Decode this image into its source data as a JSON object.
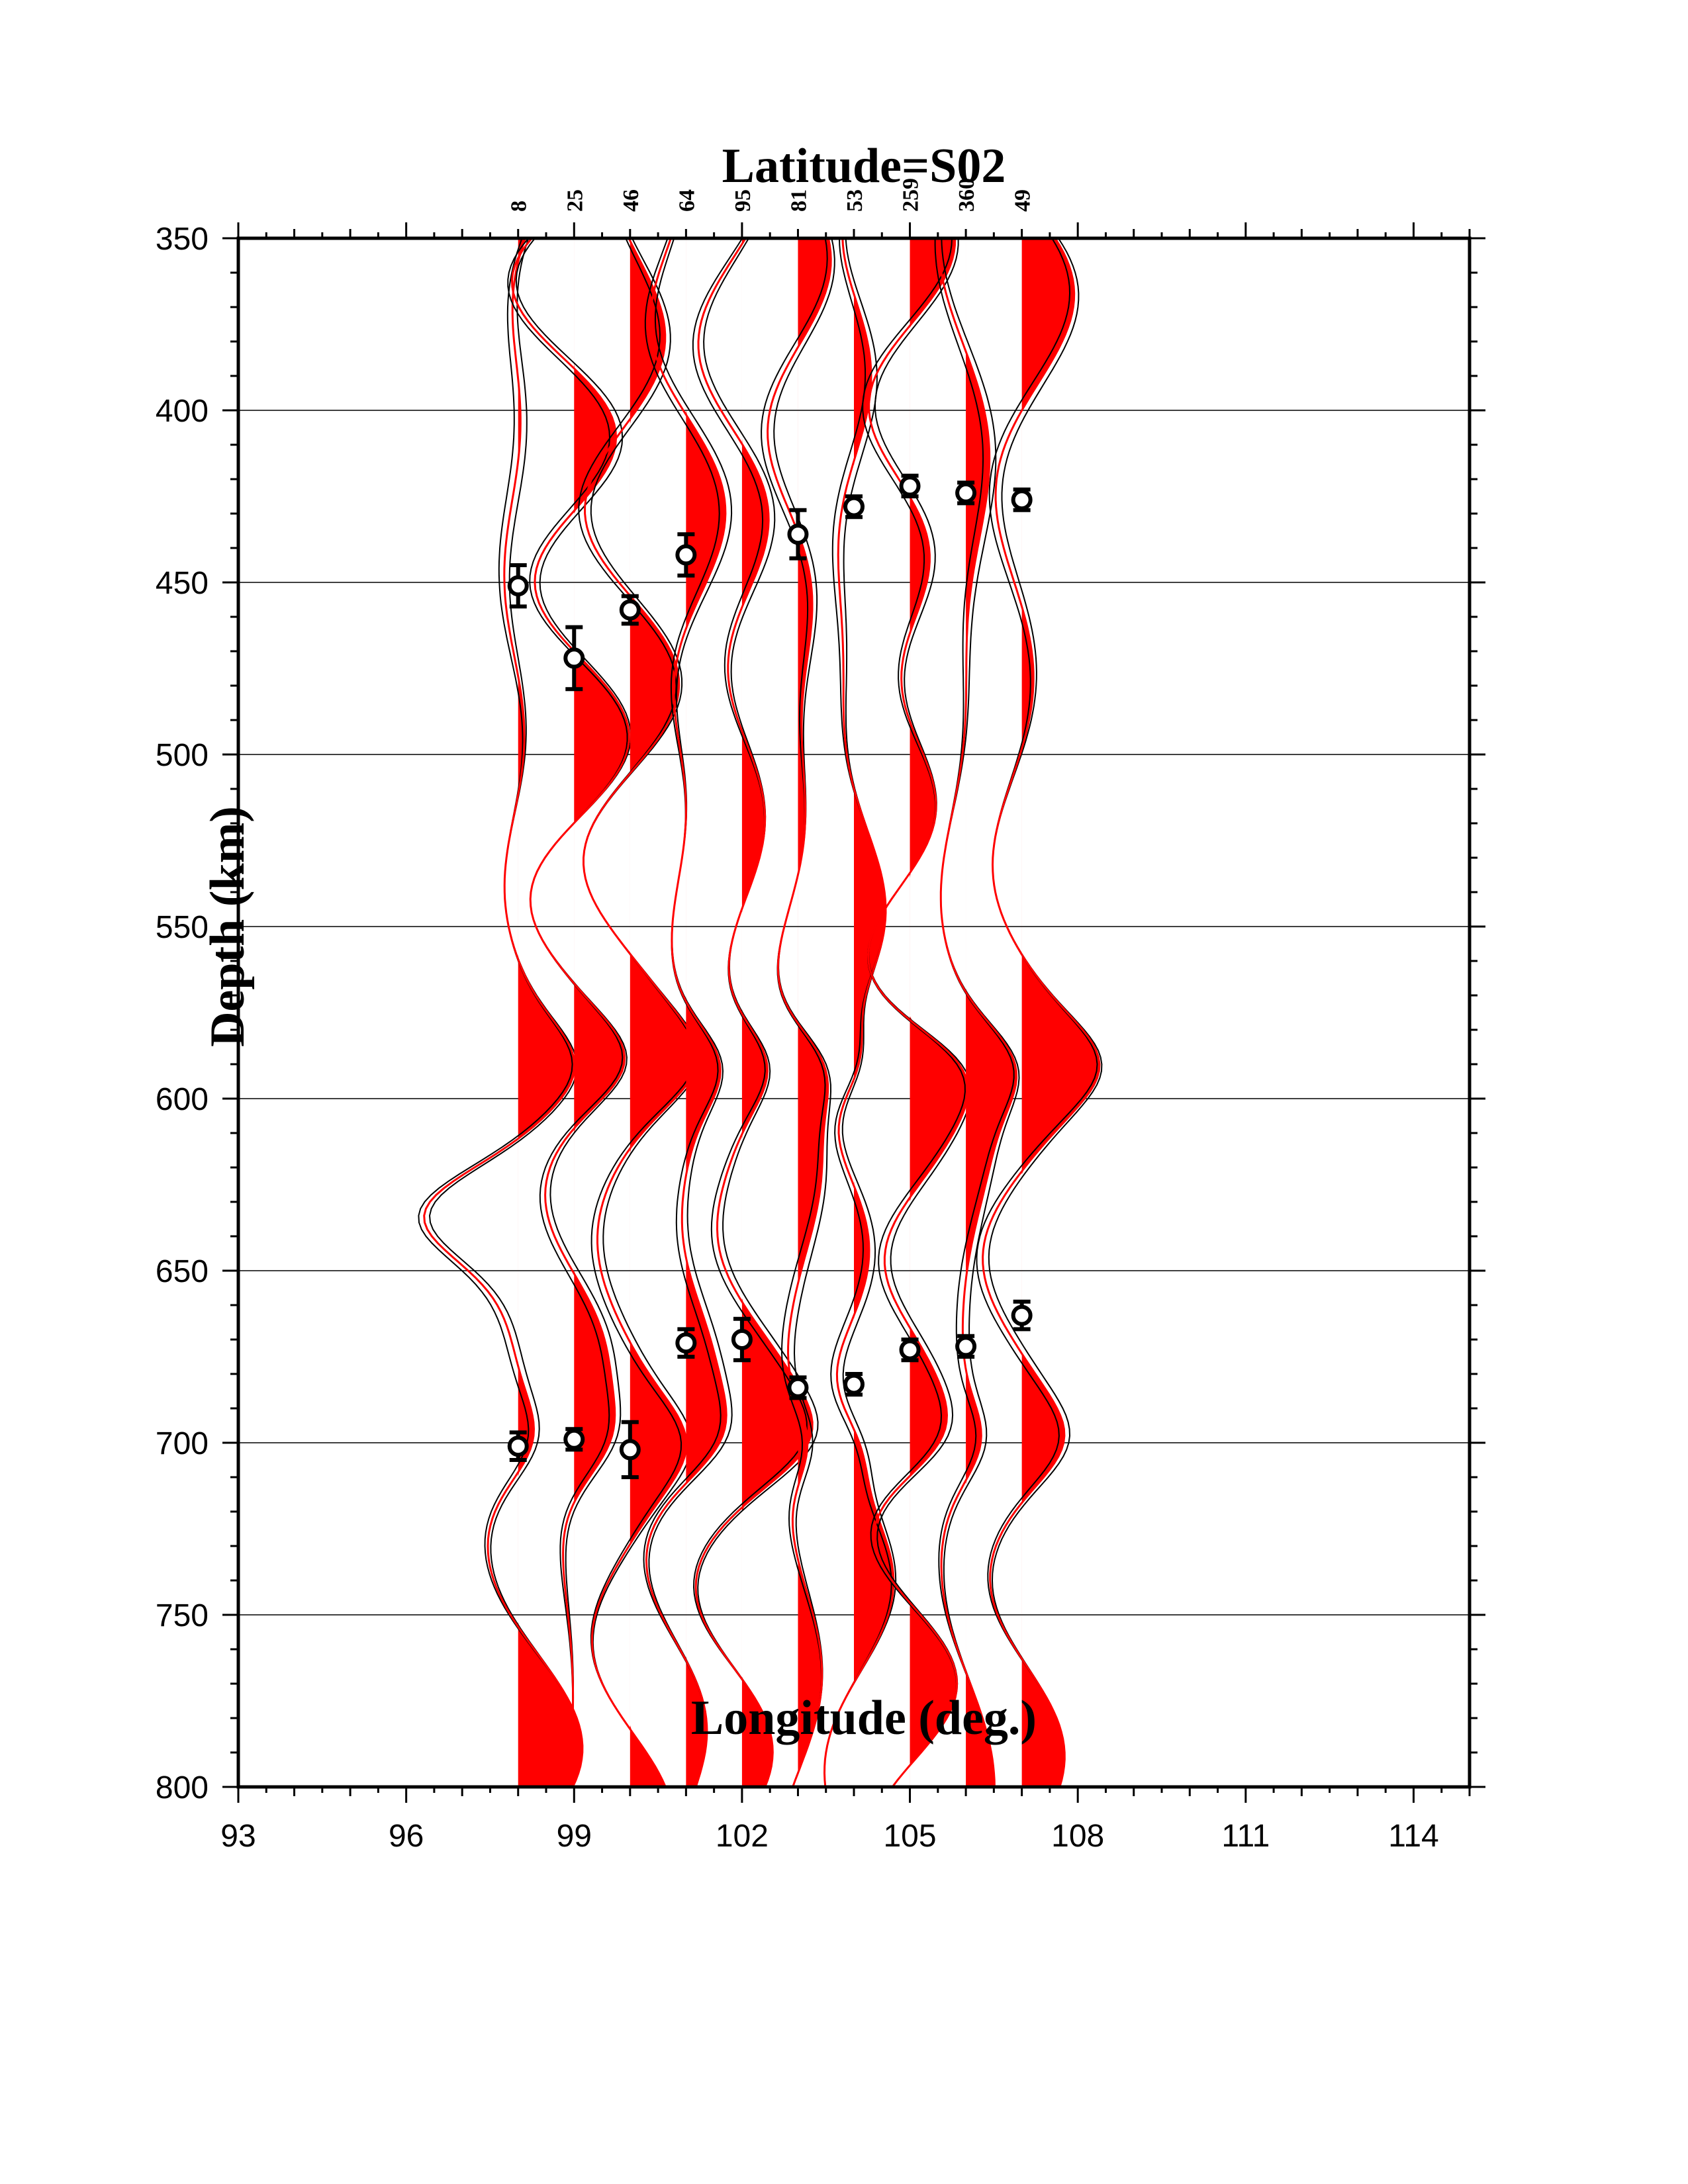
{
  "chart_data": {
    "type": "line",
    "title": "Latitude=S02",
    "xlabel": "Longitude (deg.)",
    "ylabel": "Depth (km)",
    "xlim": [
      93,
      115
    ],
    "ylim": [
      350,
      800
    ],
    "y_inverted": true,
    "xticks": [
      "93",
      "96",
      "99",
      "102",
      "105",
      "108",
      "111",
      "114"
    ],
    "yticks": [
      "350",
      "400",
      "450",
      "500",
      "550",
      "600",
      "650",
      "700",
      "750",
      "800"
    ],
    "grid": "horizontal",
    "colors": {
      "positive_fill": "#ff0000",
      "trace": "#000000",
      "mean_trace": "#ff0000"
    },
    "trace_longitudes": [
      98,
      99,
      100,
      101,
      102,
      103,
      104,
      105,
      106,
      107
    ],
    "trace_counts": [
      "8",
      "25",
      "46",
      "64",
      "95",
      "81",
      "53",
      "259",
      "360",
      "49"
    ],
    "d410_picks": [
      {
        "lon": 98,
        "depth": 451,
        "err": 6
      },
      {
        "lon": 99,
        "depth": 472,
        "err": 9
      },
      {
        "lon": 100,
        "depth": 458,
        "err": 4
      },
      {
        "lon": 101,
        "depth": 442,
        "err": 6
      },
      {
        "lon": 103,
        "depth": 436,
        "err": 7
      },
      {
        "lon": 104,
        "depth": 428,
        "err": 3
      },
      {
        "lon": 105,
        "depth": 422,
        "err": 3
      },
      {
        "lon": 106,
        "depth": 424,
        "err": 3
      },
      {
        "lon": 107,
        "depth": 426,
        "err": 3
      }
    ],
    "d660_picks": [
      {
        "lon": 98,
        "depth": 701,
        "err": 4
      },
      {
        "lon": 99,
        "depth": 699,
        "err": 3
      },
      {
        "lon": 100,
        "depth": 702,
        "err": 8
      },
      {
        "lon": 101,
        "depth": 671,
        "err": 4
      },
      {
        "lon": 102,
        "depth": 670,
        "err": 6
      },
      {
        "lon": 103,
        "depth": 684,
        "err": 3
      },
      {
        "lon": 104,
        "depth": 683,
        "err": 3
      },
      {
        "lon": 105,
        "depth": 673,
        "err": 3
      },
      {
        "lon": 106,
        "depth": 672,
        "err": 3
      },
      {
        "lon": 107,
        "depth": 663,
        "err": 4
      }
    ]
  }
}
